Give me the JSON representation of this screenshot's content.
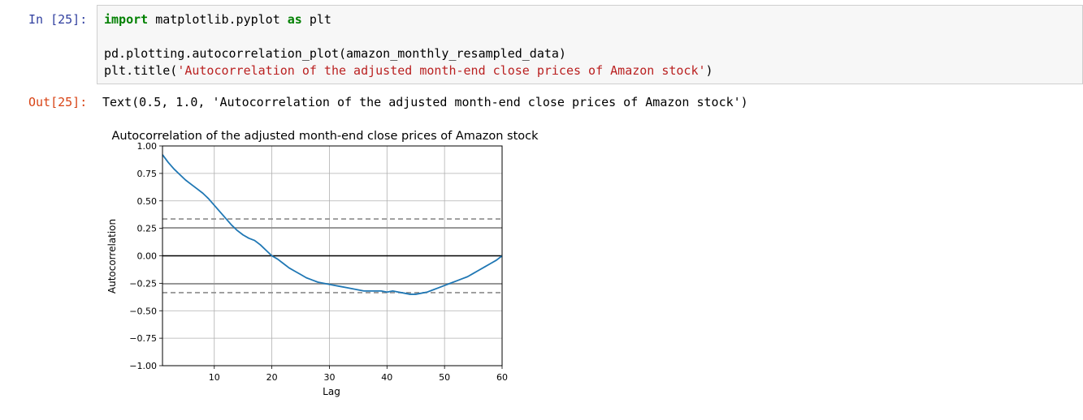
{
  "cell": {
    "in_prompt": "In [25]:",
    "out_prompt": "Out[25]:",
    "code": {
      "line1_kw1": "import",
      "line1_mid": " matplotlib.pyplot ",
      "line1_kw2": "as",
      "line1_end": " plt",
      "line2": "pd.plotting.autocorrelation_plot(amazon_monthly_resampled_data)",
      "line3_start": "plt.title(",
      "line3_str": "'Autocorrelation of the adjusted month-end close prices of Amazon stock'",
      "line3_end": ")"
    },
    "output_text": "Text(0.5, 1.0, 'Autocorrelation of the adjusted month-end close prices of Amazon stock')"
  },
  "chart_data": {
    "type": "line",
    "title": "Autocorrelation of the adjusted month-end close prices of Amazon stock",
    "xlabel": "Lag",
    "ylabel": "Autocorrelation",
    "xlim": [
      1,
      60
    ],
    "ylim": [
      -1.0,
      1.0
    ],
    "xticks": [
      10,
      20,
      30,
      40,
      50,
      60
    ],
    "yticks": [
      "1.00",
      "0.75",
      "0.50",
      "0.25",
      "0.00",
      "−0.25",
      "−0.50",
      "−0.75",
      "−1.00"
    ],
    "ytick_values": [
      1.0,
      0.75,
      0.5,
      0.25,
      0.0,
      -0.25,
      -0.5,
      -0.75,
      -1.0
    ],
    "grid": true,
    "confidence_lines": {
      "solid": [
        0.255,
        -0.255
      ],
      "dashed": [
        0.335,
        -0.335
      ],
      "zero": 0.0
    },
    "series": [
      {
        "color": "#1f77b4",
        "x": [
          1,
          2,
          3,
          4,
          5,
          6,
          7,
          8,
          9,
          10,
          11,
          12,
          13,
          14,
          15,
          16,
          17,
          18,
          19,
          20,
          21,
          22,
          23,
          24,
          25,
          26,
          27,
          28,
          29,
          30,
          31,
          32,
          33,
          34,
          35,
          36,
          37,
          38,
          39,
          40,
          41,
          42,
          43,
          44,
          45,
          46,
          47,
          48,
          49,
          50,
          51,
          52,
          53,
          54,
          55,
          56,
          57,
          58,
          59,
          60
        ],
        "values": [
          0.92,
          0.85,
          0.79,
          0.74,
          0.69,
          0.65,
          0.61,
          0.57,
          0.52,
          0.46,
          0.4,
          0.34,
          0.28,
          0.23,
          0.19,
          0.16,
          0.14,
          0.1,
          0.05,
          0.0,
          -0.03,
          -0.07,
          -0.11,
          -0.14,
          -0.17,
          -0.2,
          -0.22,
          -0.24,
          -0.25,
          -0.26,
          -0.27,
          -0.28,
          -0.29,
          -0.3,
          -0.31,
          -0.32,
          -0.32,
          -0.32,
          -0.32,
          -0.33,
          -0.32,
          -0.33,
          -0.34,
          -0.35,
          -0.35,
          -0.34,
          -0.33,
          -0.31,
          -0.29,
          -0.27,
          -0.25,
          -0.23,
          -0.21,
          -0.19,
          -0.16,
          -0.13,
          -0.1,
          -0.07,
          -0.04,
          0.0
        ]
      }
    ]
  }
}
